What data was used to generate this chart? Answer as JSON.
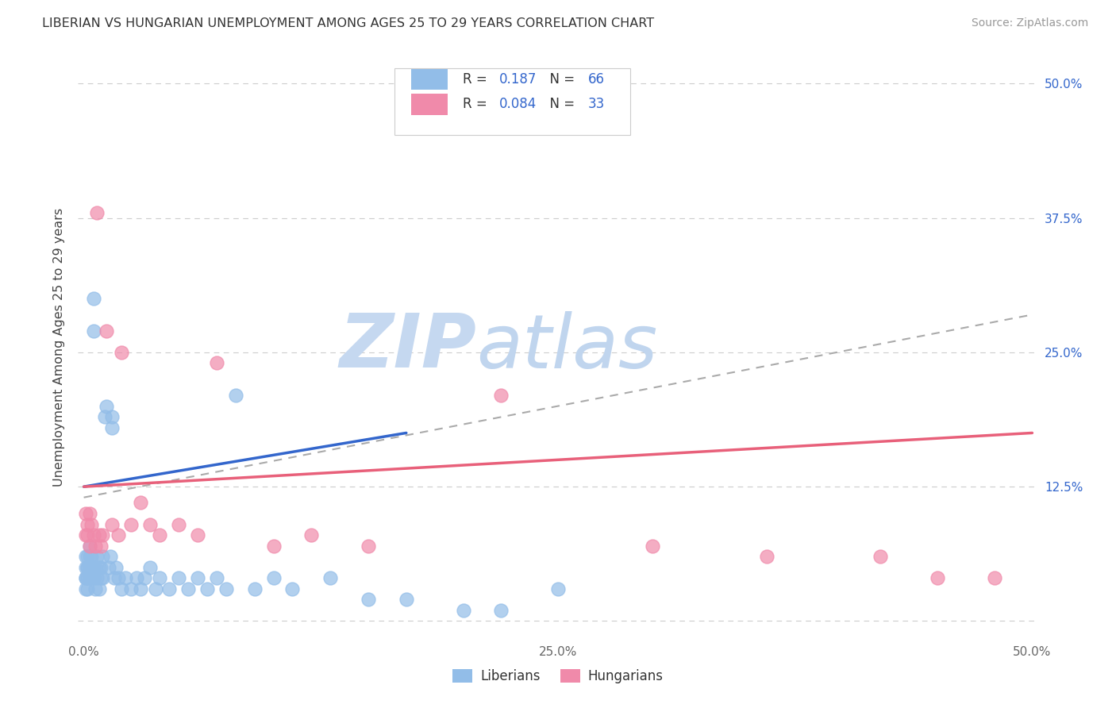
{
  "title": "LIBERIAN VS HUNGARIAN UNEMPLOYMENT AMONG AGES 25 TO 29 YEARS CORRELATION CHART",
  "source": "Source: ZipAtlas.com",
  "ylabel": "Unemployment Among Ages 25 to 29 years",
  "xlim": [
    0.0,
    0.5
  ],
  "ylim": [
    0.0,
    0.525
  ],
  "xtick_vals": [
    0.0,
    0.125,
    0.25,
    0.375,
    0.5
  ],
  "xticklabels": [
    "0.0%",
    "",
    "25.0%",
    "",
    "50.0%"
  ],
  "ytick_vals": [
    0.0,
    0.125,
    0.25,
    0.375,
    0.5
  ],
  "yticklabels_right": [
    "",
    "12.5%",
    "25.0%",
    "37.5%",
    "50.0%"
  ],
  "liberian_color": "#92bde8",
  "hungarian_color": "#f08aaa",
  "liberian_line_color": "#3366cc",
  "hungarian_line_color": "#e8607a",
  "dashed_line_color": "#aaaaaa",
  "legend_blue_color": "#3366cc",
  "watermark_zip_color": "#c8ddf5",
  "watermark_atlas_color": "#b0cce8",
  "background_color": "#ffffff",
  "grid_color": "#cccccc",
  "right_tick_color": "#3366cc",
  "liberian_R": 0.187,
  "liberian_N": 66,
  "hungarian_R": 0.084,
  "hungarian_N": 33,
  "lib_x": [
    0.001,
    0.001,
    0.001,
    0.001,
    0.001,
    0.002,
    0.002,
    0.002,
    0.002,
    0.002,
    0.003,
    0.003,
    0.003,
    0.003,
    0.004,
    0.004,
    0.004,
    0.005,
    0.005,
    0.005,
    0.005,
    0.006,
    0.006,
    0.007,
    0.007,
    0.008,
    0.008,
    0.009,
    0.009,
    0.01,
    0.01,
    0.011,
    0.012,
    0.013,
    0.014,
    0.015,
    0.015,
    0.016,
    0.017,
    0.018,
    0.02,
    0.022,
    0.025,
    0.028,
    0.03,
    0.032,
    0.035,
    0.038,
    0.04,
    0.045,
    0.05,
    0.055,
    0.06,
    0.065,
    0.07,
    0.075,
    0.08,
    0.09,
    0.1,
    0.11,
    0.13,
    0.15,
    0.17,
    0.2,
    0.22,
    0.25
  ],
  "lib_y": [
    0.04,
    0.05,
    0.03,
    0.06,
    0.04,
    0.05,
    0.04,
    0.06,
    0.03,
    0.05,
    0.04,
    0.06,
    0.05,
    0.07,
    0.04,
    0.05,
    0.06,
    0.3,
    0.27,
    0.05,
    0.04,
    0.03,
    0.05,
    0.04,
    0.06,
    0.05,
    0.03,
    0.04,
    0.05,
    0.06,
    0.04,
    0.19,
    0.2,
    0.05,
    0.06,
    0.18,
    0.19,
    0.04,
    0.05,
    0.04,
    0.03,
    0.04,
    0.03,
    0.04,
    0.03,
    0.04,
    0.05,
    0.03,
    0.04,
    0.03,
    0.04,
    0.03,
    0.04,
    0.03,
    0.04,
    0.03,
    0.21,
    0.03,
    0.04,
    0.03,
    0.04,
    0.02,
    0.02,
    0.01,
    0.01,
    0.03
  ],
  "hung_x": [
    0.001,
    0.001,
    0.002,
    0.002,
    0.003,
    0.003,
    0.004,
    0.005,
    0.006,
    0.007,
    0.008,
    0.009,
    0.01,
    0.012,
    0.015,
    0.018,
    0.02,
    0.025,
    0.03,
    0.035,
    0.04,
    0.05,
    0.06,
    0.07,
    0.1,
    0.12,
    0.15,
    0.22,
    0.3,
    0.36,
    0.42,
    0.45,
    0.48
  ],
  "hung_y": [
    0.08,
    0.1,
    0.09,
    0.08,
    0.1,
    0.07,
    0.09,
    0.08,
    0.07,
    0.38,
    0.08,
    0.07,
    0.08,
    0.27,
    0.09,
    0.08,
    0.25,
    0.09,
    0.11,
    0.09,
    0.08,
    0.09,
    0.08,
    0.24,
    0.07,
    0.08,
    0.07,
    0.21,
    0.07,
    0.06,
    0.06,
    0.04,
    0.04
  ],
  "lib_trend_x": [
    0.0,
    0.17
  ],
  "lib_trend_y": [
    0.125,
    0.175
  ],
  "hung_trend_x": [
    0.0,
    0.5
  ],
  "hung_trend_y": [
    0.125,
    0.175
  ],
  "dashed_trend_x": [
    0.0,
    0.5
  ],
  "dashed_trend_y": [
    0.115,
    0.285
  ]
}
